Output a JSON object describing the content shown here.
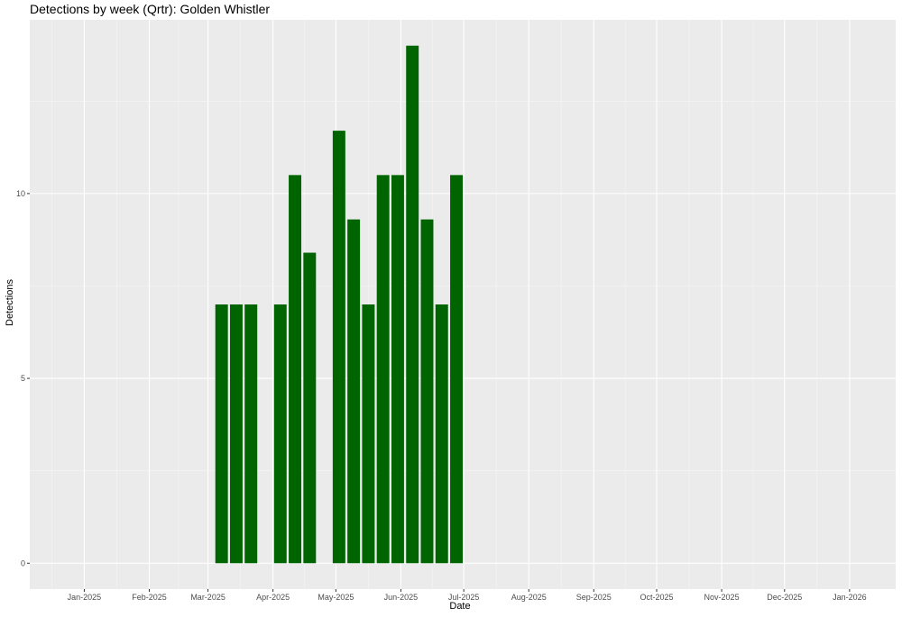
{
  "chart_data": {
    "type": "bar",
    "title": "Detections by week (Qrtr): Golden Whistler",
    "xlabel": "Date",
    "ylabel": "Detections",
    "x_ticks": [
      "Jan-2025",
      "Feb-2025",
      "Mar-2025",
      "Apr-2025",
      "May-2025",
      "Jun-2025",
      "Jul-2025",
      "Aug-2025",
      "Sep-2025",
      "Oct-2025",
      "Nov-2025",
      "Dec-2025",
      "Jan-2026"
    ],
    "y_ticks": [
      0,
      5,
      10
    ],
    "ylim": [
      -0.7,
      14.7
    ],
    "xlim": [
      "2024-12-06",
      "2026-01-23"
    ],
    "grid": true,
    "bar_color": "#006400",
    "bars": [
      {
        "week": "2025-03-04",
        "value": 7
      },
      {
        "week": "2025-03-11",
        "value": 7
      },
      {
        "week": "2025-03-18",
        "value": 7
      },
      {
        "week": "2025-04-01",
        "value": 7
      },
      {
        "week": "2025-04-08",
        "value": 10.5
      },
      {
        "week": "2025-04-15",
        "value": 8.4
      },
      {
        "week": "2025-04-29",
        "value": 11.7
      },
      {
        "week": "2025-05-06",
        "value": 9.3
      },
      {
        "week": "2025-05-13",
        "value": 7
      },
      {
        "week": "2025-05-20",
        "value": 10.5
      },
      {
        "week": "2025-05-27",
        "value": 10.5
      },
      {
        "week": "2025-06-03",
        "value": 14
      },
      {
        "week": "2025-06-10",
        "value": 9.3
      },
      {
        "week": "2025-06-17",
        "value": 7
      },
      {
        "week": "2025-06-24",
        "value": 10.5
      }
    ]
  }
}
